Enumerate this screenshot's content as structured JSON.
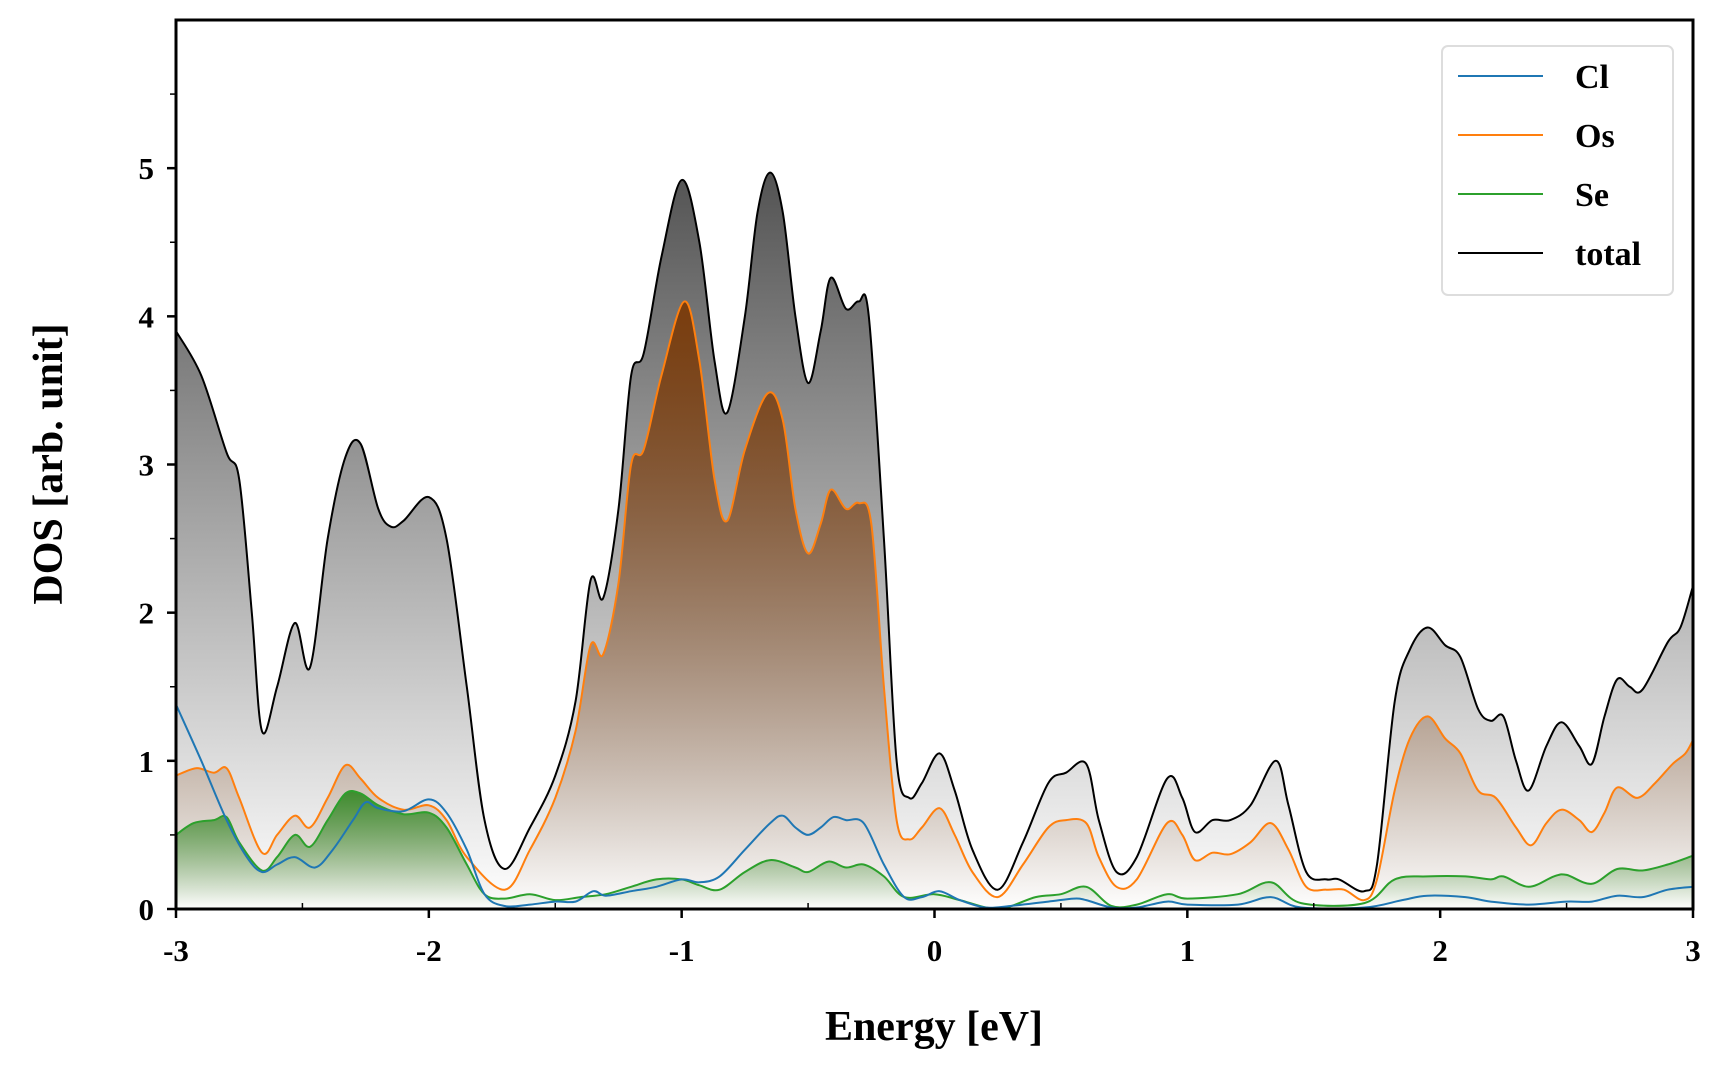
{
  "chart_data": {
    "type": "area",
    "xlabel": "Energy [eV]",
    "ylabel": "DOS [arb. unit]",
    "xlim": [
      -3,
      3
    ],
    "ylim": [
      0,
      6
    ],
    "xticks": [
      "-3",
      "-2",
      "-1",
      "0",
      "1",
      "2",
      "3"
    ],
    "yticks": [
      "0",
      "1",
      "2",
      "3",
      "4",
      "5"
    ],
    "legend_position": "top-right",
    "grid": false,
    "series": [
      {
        "name": "total",
        "color": "#000000",
        "fill": "#4a4a4a",
        "points": [
          [
            -3,
            3.9
          ],
          [
            -2.9,
            3.6
          ],
          [
            -2.8,
            3.08
          ],
          [
            -2.75,
            2.9
          ],
          [
            -2.7,
            2.0
          ],
          [
            -2.66,
            1.2
          ],
          [
            -2.6,
            1.5
          ],
          [
            -2.53,
            1.93
          ],
          [
            -2.47,
            1.63
          ],
          [
            -2.4,
            2.5
          ],
          [
            -2.33,
            3.05
          ],
          [
            -2.27,
            3.14
          ],
          [
            -2.2,
            2.7
          ],
          [
            -2.15,
            2.58
          ],
          [
            -2.1,
            2.62
          ],
          [
            -2.0,
            2.78
          ],
          [
            -1.93,
            2.5
          ],
          [
            -1.85,
            1.5
          ],
          [
            -1.78,
            0.6
          ],
          [
            -1.7,
            0.27
          ],
          [
            -1.6,
            0.55
          ],
          [
            -1.5,
            0.9
          ],
          [
            -1.42,
            1.4
          ],
          [
            -1.36,
            2.22
          ],
          [
            -1.31,
            2.1
          ],
          [
            -1.25,
            2.7
          ],
          [
            -1.2,
            3.6
          ],
          [
            -1.15,
            3.75
          ],
          [
            -1.08,
            4.4
          ],
          [
            -1.0,
            4.92
          ],
          [
            -0.93,
            4.5
          ],
          [
            -0.87,
            3.7
          ],
          [
            -0.82,
            3.35
          ],
          [
            -0.75,
            4.0
          ],
          [
            -0.7,
            4.7
          ],
          [
            -0.65,
            4.97
          ],
          [
            -0.6,
            4.7
          ],
          [
            -0.55,
            4.0
          ],
          [
            -0.5,
            3.55
          ],
          [
            -0.45,
            3.9
          ],
          [
            -0.41,
            4.26
          ],
          [
            -0.35,
            4.05
          ],
          [
            -0.3,
            4.1
          ],
          [
            -0.26,
            4.0
          ],
          [
            -0.2,
            2.5
          ],
          [
            -0.15,
            1.0
          ],
          [
            -0.1,
            0.75
          ],
          [
            -0.05,
            0.85
          ],
          [
            0.02,
            1.05
          ],
          [
            0.08,
            0.8
          ],
          [
            0.15,
            0.4
          ],
          [
            0.25,
            0.13
          ],
          [
            0.35,
            0.45
          ],
          [
            0.45,
            0.85
          ],
          [
            0.52,
            0.92
          ],
          [
            0.6,
            0.98
          ],
          [
            0.65,
            0.6
          ],
          [
            0.72,
            0.25
          ],
          [
            0.8,
            0.35
          ],
          [
            0.92,
            0.88
          ],
          [
            0.98,
            0.75
          ],
          [
            1.03,
            0.52
          ],
          [
            1.1,
            0.6
          ],
          [
            1.17,
            0.6
          ],
          [
            1.25,
            0.7
          ],
          [
            1.35,
            1.0
          ],
          [
            1.4,
            0.7
          ],
          [
            1.47,
            0.25
          ],
          [
            1.55,
            0.2
          ],
          [
            1.6,
            0.2
          ],
          [
            1.7,
            0.12
          ],
          [
            1.75,
            0.3
          ],
          [
            1.82,
            1.4
          ],
          [
            1.88,
            1.75
          ],
          [
            1.95,
            1.9
          ],
          [
            2.02,
            1.78
          ],
          [
            2.08,
            1.7
          ],
          [
            2.15,
            1.35
          ],
          [
            2.2,
            1.27
          ],
          [
            2.25,
            1.3
          ],
          [
            2.3,
            1.0
          ],
          [
            2.35,
            0.8
          ],
          [
            2.42,
            1.1
          ],
          [
            2.48,
            1.26
          ],
          [
            2.55,
            1.1
          ],
          [
            2.6,
            0.98
          ],
          [
            2.65,
            1.3
          ],
          [
            2.7,
            1.55
          ],
          [
            2.75,
            1.5
          ],
          [
            2.8,
            1.48
          ],
          [
            2.9,
            1.8
          ],
          [
            2.95,
            1.9
          ],
          [
            3.0,
            2.18
          ]
        ]
      },
      {
        "name": "Os",
        "color": "#ff7f0e",
        "fill": "#7a3a08",
        "points": [
          [
            -3,
            0.9
          ],
          [
            -2.92,
            0.95
          ],
          [
            -2.85,
            0.92
          ],
          [
            -2.8,
            0.95
          ],
          [
            -2.75,
            0.75
          ],
          [
            -2.66,
            0.38
          ],
          [
            -2.6,
            0.5
          ],
          [
            -2.53,
            0.63
          ],
          [
            -2.47,
            0.55
          ],
          [
            -2.4,
            0.75
          ],
          [
            -2.33,
            0.97
          ],
          [
            -2.27,
            0.88
          ],
          [
            -2.2,
            0.75
          ],
          [
            -2.1,
            0.67
          ],
          [
            -2.0,
            0.7
          ],
          [
            -1.93,
            0.6
          ],
          [
            -1.85,
            0.35
          ],
          [
            -1.7,
            0.13
          ],
          [
            -1.6,
            0.4
          ],
          [
            -1.5,
            0.75
          ],
          [
            -1.42,
            1.2
          ],
          [
            -1.36,
            1.78
          ],
          [
            -1.31,
            1.72
          ],
          [
            -1.25,
            2.2
          ],
          [
            -1.2,
            3.0
          ],
          [
            -1.15,
            3.1
          ],
          [
            -1.08,
            3.6
          ],
          [
            -0.99,
            4.1
          ],
          [
            -0.93,
            3.7
          ],
          [
            -0.87,
            2.9
          ],
          [
            -0.82,
            2.62
          ],
          [
            -0.75,
            3.1
          ],
          [
            -0.66,
            3.48
          ],
          [
            -0.6,
            3.3
          ],
          [
            -0.55,
            2.7
          ],
          [
            -0.5,
            2.4
          ],
          [
            -0.45,
            2.6
          ],
          [
            -0.41,
            2.83
          ],
          [
            -0.35,
            2.7
          ],
          [
            -0.3,
            2.74
          ],
          [
            -0.25,
            2.6
          ],
          [
            -0.2,
            1.5
          ],
          [
            -0.15,
            0.6
          ],
          [
            -0.1,
            0.47
          ],
          [
            -0.05,
            0.55
          ],
          [
            0.02,
            0.68
          ],
          [
            0.08,
            0.5
          ],
          [
            0.15,
            0.25
          ],
          [
            0.25,
            0.08
          ],
          [
            0.35,
            0.3
          ],
          [
            0.45,
            0.55
          ],
          [
            0.52,
            0.6
          ],
          [
            0.6,
            0.58
          ],
          [
            0.65,
            0.35
          ],
          [
            0.72,
            0.15
          ],
          [
            0.8,
            0.2
          ],
          [
            0.92,
            0.58
          ],
          [
            0.98,
            0.5
          ],
          [
            1.03,
            0.33
          ],
          [
            1.1,
            0.38
          ],
          [
            1.17,
            0.37
          ],
          [
            1.25,
            0.45
          ],
          [
            1.33,
            0.58
          ],
          [
            1.4,
            0.4
          ],
          [
            1.47,
            0.15
          ],
          [
            1.55,
            0.13
          ],
          [
            1.62,
            0.13
          ],
          [
            1.7,
            0.06
          ],
          [
            1.75,
            0.2
          ],
          [
            1.82,
            0.8
          ],
          [
            1.88,
            1.15
          ],
          [
            1.95,
            1.3
          ],
          [
            2.02,
            1.15
          ],
          [
            2.08,
            1.05
          ],
          [
            2.15,
            0.8
          ],
          [
            2.22,
            0.75
          ],
          [
            2.3,
            0.55
          ],
          [
            2.36,
            0.43
          ],
          [
            2.42,
            0.58
          ],
          [
            2.48,
            0.67
          ],
          [
            2.55,
            0.6
          ],
          [
            2.6,
            0.52
          ],
          [
            2.65,
            0.65
          ],
          [
            2.7,
            0.82
          ],
          [
            2.78,
            0.75
          ],
          [
            2.85,
            0.85
          ],
          [
            2.92,
            0.98
          ],
          [
            2.97,
            1.05
          ],
          [
            3.0,
            1.14
          ]
        ]
      },
      {
        "name": "Se",
        "color": "#2ca02c",
        "fill": "#3a8a2a",
        "points": [
          [
            -3,
            0.5
          ],
          [
            -2.93,
            0.58
          ],
          [
            -2.85,
            0.6
          ],
          [
            -2.8,
            0.62
          ],
          [
            -2.75,
            0.45
          ],
          [
            -2.66,
            0.26
          ],
          [
            -2.6,
            0.35
          ],
          [
            -2.53,
            0.5
          ],
          [
            -2.47,
            0.42
          ],
          [
            -2.4,
            0.6
          ],
          [
            -2.33,
            0.78
          ],
          [
            -2.27,
            0.78
          ],
          [
            -2.2,
            0.7
          ],
          [
            -2.1,
            0.64
          ],
          [
            -2.0,
            0.65
          ],
          [
            -1.93,
            0.55
          ],
          [
            -1.85,
            0.3
          ],
          [
            -1.78,
            0.1
          ],
          [
            -1.7,
            0.07
          ],
          [
            -1.6,
            0.1
          ],
          [
            -1.5,
            0.06
          ],
          [
            -1.4,
            0.08
          ],
          [
            -1.3,
            0.1
          ],
          [
            -1.2,
            0.15
          ],
          [
            -1.1,
            0.2
          ],
          [
            -1.0,
            0.2
          ],
          [
            -0.93,
            0.16
          ],
          [
            -0.85,
            0.13
          ],
          [
            -0.75,
            0.25
          ],
          [
            -0.65,
            0.33
          ],
          [
            -0.55,
            0.28
          ],
          [
            -0.5,
            0.25
          ],
          [
            -0.42,
            0.32
          ],
          [
            -0.35,
            0.28
          ],
          [
            -0.28,
            0.3
          ],
          [
            -0.2,
            0.22
          ],
          [
            -0.12,
            0.08
          ],
          [
            0.0,
            0.1
          ],
          [
            0.1,
            0.06
          ],
          [
            0.25,
            0.0
          ],
          [
            0.4,
            0.08
          ],
          [
            0.5,
            0.1
          ],
          [
            0.6,
            0.15
          ],
          [
            0.7,
            0.02
          ],
          [
            0.8,
            0.03
          ],
          [
            0.92,
            0.1
          ],
          [
            1.0,
            0.07
          ],
          [
            1.2,
            0.1
          ],
          [
            1.33,
            0.18
          ],
          [
            1.45,
            0.04
          ],
          [
            1.7,
            0.04
          ],
          [
            1.82,
            0.2
          ],
          [
            1.95,
            0.22
          ],
          [
            2.1,
            0.22
          ],
          [
            2.2,
            0.2
          ],
          [
            2.25,
            0.22
          ],
          [
            2.35,
            0.15
          ],
          [
            2.45,
            0.22
          ],
          [
            2.5,
            0.23
          ],
          [
            2.6,
            0.17
          ],
          [
            2.7,
            0.27
          ],
          [
            2.8,
            0.26
          ],
          [
            2.9,
            0.3
          ],
          [
            3.0,
            0.36
          ]
        ]
      },
      {
        "name": "Cl",
        "color": "#1f77b4",
        "fill": null,
        "points": [
          [
            -3,
            1.38
          ],
          [
            -2.9,
            1.0
          ],
          [
            -2.8,
            0.6
          ],
          [
            -2.72,
            0.35
          ],
          [
            -2.66,
            0.25
          ],
          [
            -2.6,
            0.3
          ],
          [
            -2.53,
            0.35
          ],
          [
            -2.45,
            0.28
          ],
          [
            -2.38,
            0.4
          ],
          [
            -2.3,
            0.6
          ],
          [
            -2.25,
            0.72
          ],
          [
            -2.2,
            0.68
          ],
          [
            -2.1,
            0.66
          ],
          [
            -2.0,
            0.74
          ],
          [
            -1.93,
            0.65
          ],
          [
            -1.85,
            0.4
          ],
          [
            -1.78,
            0.1
          ],
          [
            -1.7,
            0.02
          ],
          [
            -1.6,
            0.03
          ],
          [
            -1.5,
            0.05
          ],
          [
            -1.42,
            0.05
          ],
          [
            -1.35,
            0.12
          ],
          [
            -1.3,
            0.09
          ],
          [
            -1.2,
            0.12
          ],
          [
            -1.1,
            0.15
          ],
          [
            -1.0,
            0.2
          ],
          [
            -0.93,
            0.18
          ],
          [
            -0.85,
            0.22
          ],
          [
            -0.75,
            0.4
          ],
          [
            -0.65,
            0.58
          ],
          [
            -0.6,
            0.63
          ],
          [
            -0.55,
            0.55
          ],
          [
            -0.5,
            0.5
          ],
          [
            -0.45,
            0.55
          ],
          [
            -0.4,
            0.62
          ],
          [
            -0.35,
            0.6
          ],
          [
            -0.28,
            0.58
          ],
          [
            -0.2,
            0.3
          ],
          [
            -0.12,
            0.08
          ],
          [
            -0.05,
            0.08
          ],
          [
            0.02,
            0.12
          ],
          [
            0.1,
            0.06
          ],
          [
            0.2,
            0.01
          ],
          [
            0.3,
            0.02
          ],
          [
            0.45,
            0.05
          ],
          [
            0.55,
            0.07
          ],
          [
            0.6,
            0.06
          ],
          [
            0.7,
            0.01
          ],
          [
            0.8,
            0.01
          ],
          [
            0.92,
            0.05
          ],
          [
            1.0,
            0.03
          ],
          [
            1.2,
            0.03
          ],
          [
            1.33,
            0.08
          ],
          [
            1.45,
            0.01
          ],
          [
            1.7,
            0.01
          ],
          [
            1.85,
            0.06
          ],
          [
            1.95,
            0.09
          ],
          [
            2.1,
            0.08
          ],
          [
            2.2,
            0.05
          ],
          [
            2.35,
            0.03
          ],
          [
            2.5,
            0.05
          ],
          [
            2.6,
            0.05
          ],
          [
            2.7,
            0.09
          ],
          [
            2.8,
            0.08
          ],
          [
            2.9,
            0.13
          ],
          [
            3.0,
            0.15
          ]
        ]
      }
    ],
    "legend": [
      "Cl",
      "Os",
      "Se",
      "total"
    ]
  }
}
